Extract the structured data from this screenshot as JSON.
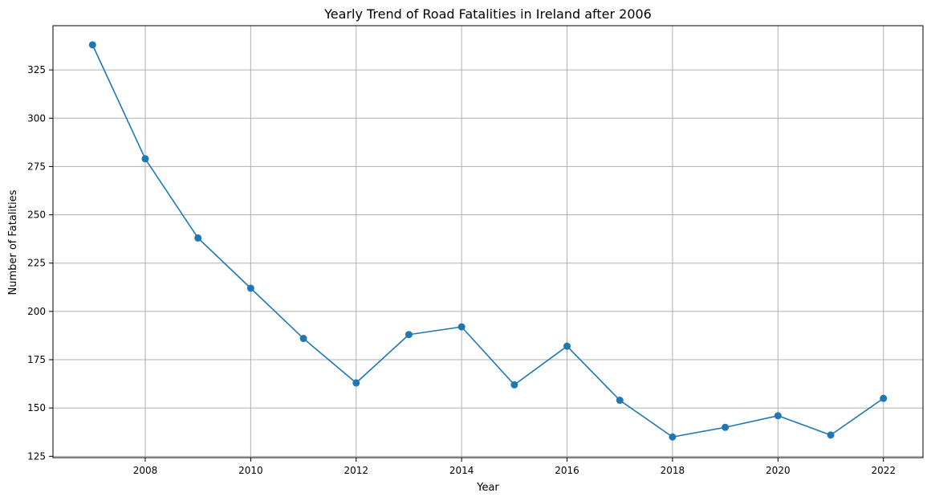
{
  "chart_data": {
    "type": "line",
    "title": "Yearly Trend of Road Fatalities in Ireland after 2006",
    "xlabel": "Year",
    "ylabel": "Number of Fatalities",
    "x": [
      2007,
      2008,
      2009,
      2010,
      2011,
      2012,
      2013,
      2014,
      2015,
      2016,
      2017,
      2018,
      2019,
      2020,
      2021,
      2022
    ],
    "series": [
      {
        "name": "",
        "values": [
          338,
          279,
          238,
          212,
          186,
          163,
          188,
          192,
          162,
          182,
          154,
          135,
          140,
          146,
          136,
          155
        ],
        "color": "#1f77b4",
        "marker": "circle"
      }
    ],
    "xlim": [
      2006.25,
      2022.75
    ],
    "ylim": [
      124.3,
      347.9
    ],
    "xticks": [
      "2008",
      "2010",
      "2012",
      "2014",
      "2016",
      "2018",
      "2020",
      "2022"
    ],
    "yticks": [
      "125",
      "150",
      "175",
      "200",
      "225",
      "250",
      "275",
      "300",
      "325"
    ],
    "grid": true,
    "legend": "none"
  }
}
